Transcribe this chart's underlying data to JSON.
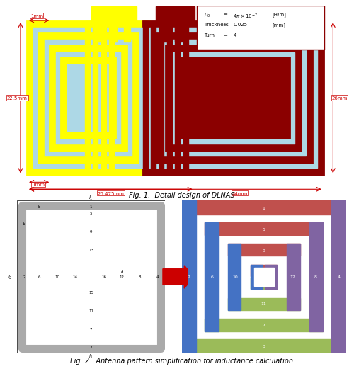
{
  "fig_title1": "Fig. 1.  Detail design of DLNAS",
  "fig_title2": "Fig. 2.  Antenna pattern simplification for inductance calculation",
  "param_box": {
    "mu": "4π x 10⁻⁷  [H/m]",
    "thickness": "0.025         [mm]",
    "turn": "4"
  },
  "dimensions": {
    "left_label": "1mm",
    "left_dim": "22.5mm",
    "bottom_dim1": "1mm",
    "bottom_dim2": "26.475mm",
    "bottom_dim3": "44mm",
    "right_dim": "26mm"
  },
  "colors": {
    "light_blue": "#ADD8E6",
    "yellow": "#FFFF00",
    "dark_red": "#8B0000",
    "white": "#FFFFFF",
    "bg_white": "#FFFFFF",
    "red_dim": "#CC0000",
    "gray_loop": "#AAAAAA",
    "blue_loop": "#4472C4",
    "red_loop": "#C0504D",
    "green_loop": "#9BBB59",
    "purple_loop": "#8064A2"
  }
}
